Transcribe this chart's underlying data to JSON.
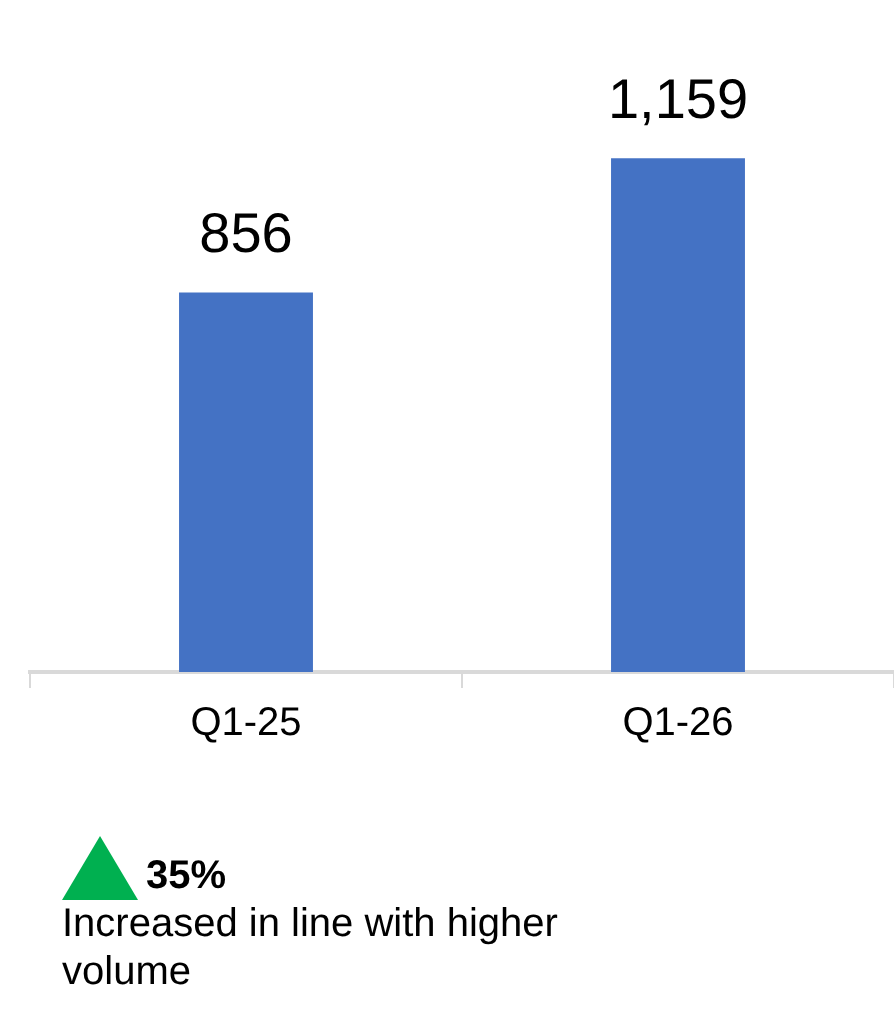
{
  "chart_data": {
    "type": "bar",
    "categories": [
      "Q1-25",
      "Q1-26"
    ],
    "values": [
      856,
      1159
    ],
    "value_labels": [
      "856",
      "1,159"
    ],
    "color": "#4472c4",
    "grid": false,
    "legend": false,
    "annotations": [
      "35%",
      "Increased in line with higher volume"
    ]
  }
}
